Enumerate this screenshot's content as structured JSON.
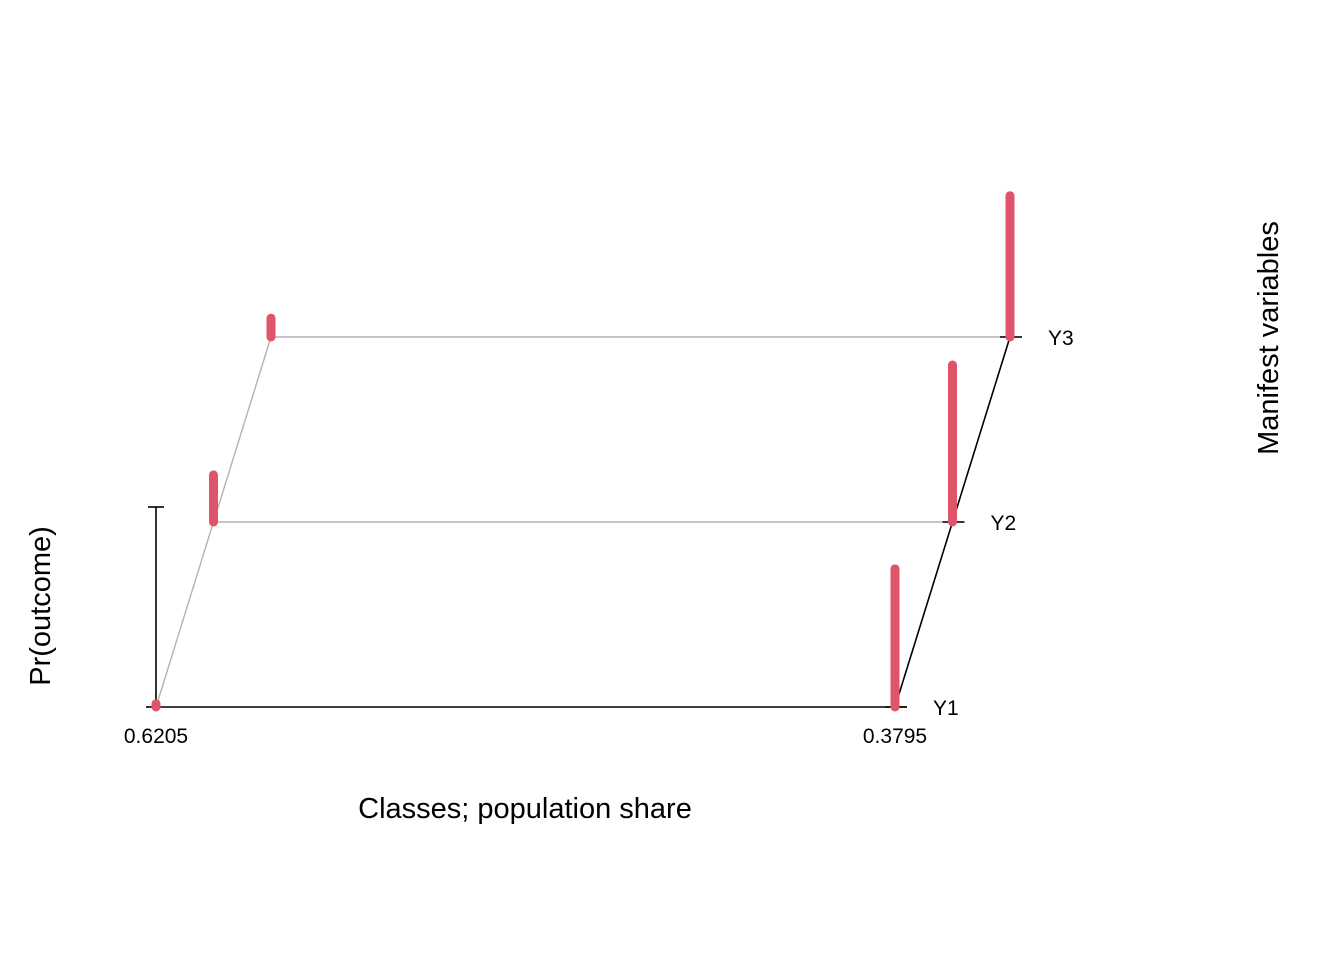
{
  "chart_data": {
    "type": "bar",
    "variant": "latent-class 3D profile plot",
    "xlabel": "Classes; population share",
    "ylabel": "Pr(outcome)",
    "zlabel": "Manifest variables",
    "classes": [
      "0.6205",
      "0.3795"
    ],
    "manifest_variables": [
      "Y1",
      "Y2",
      "Y3"
    ],
    "ylim": [
      0,
      1
    ],
    "grid": false,
    "legend": "none",
    "series": [
      {
        "class": "0.6205",
        "values": [
          0.02,
          0.3,
          0.12
        ]
      },
      {
        "class": "0.3795",
        "values": [
          0.88,
          1.0,
          0.9
        ]
      }
    ],
    "colors": {
      "bar": "#DF536B",
      "front_frame": "#000000",
      "back_frame": "#B3B3B3"
    }
  }
}
